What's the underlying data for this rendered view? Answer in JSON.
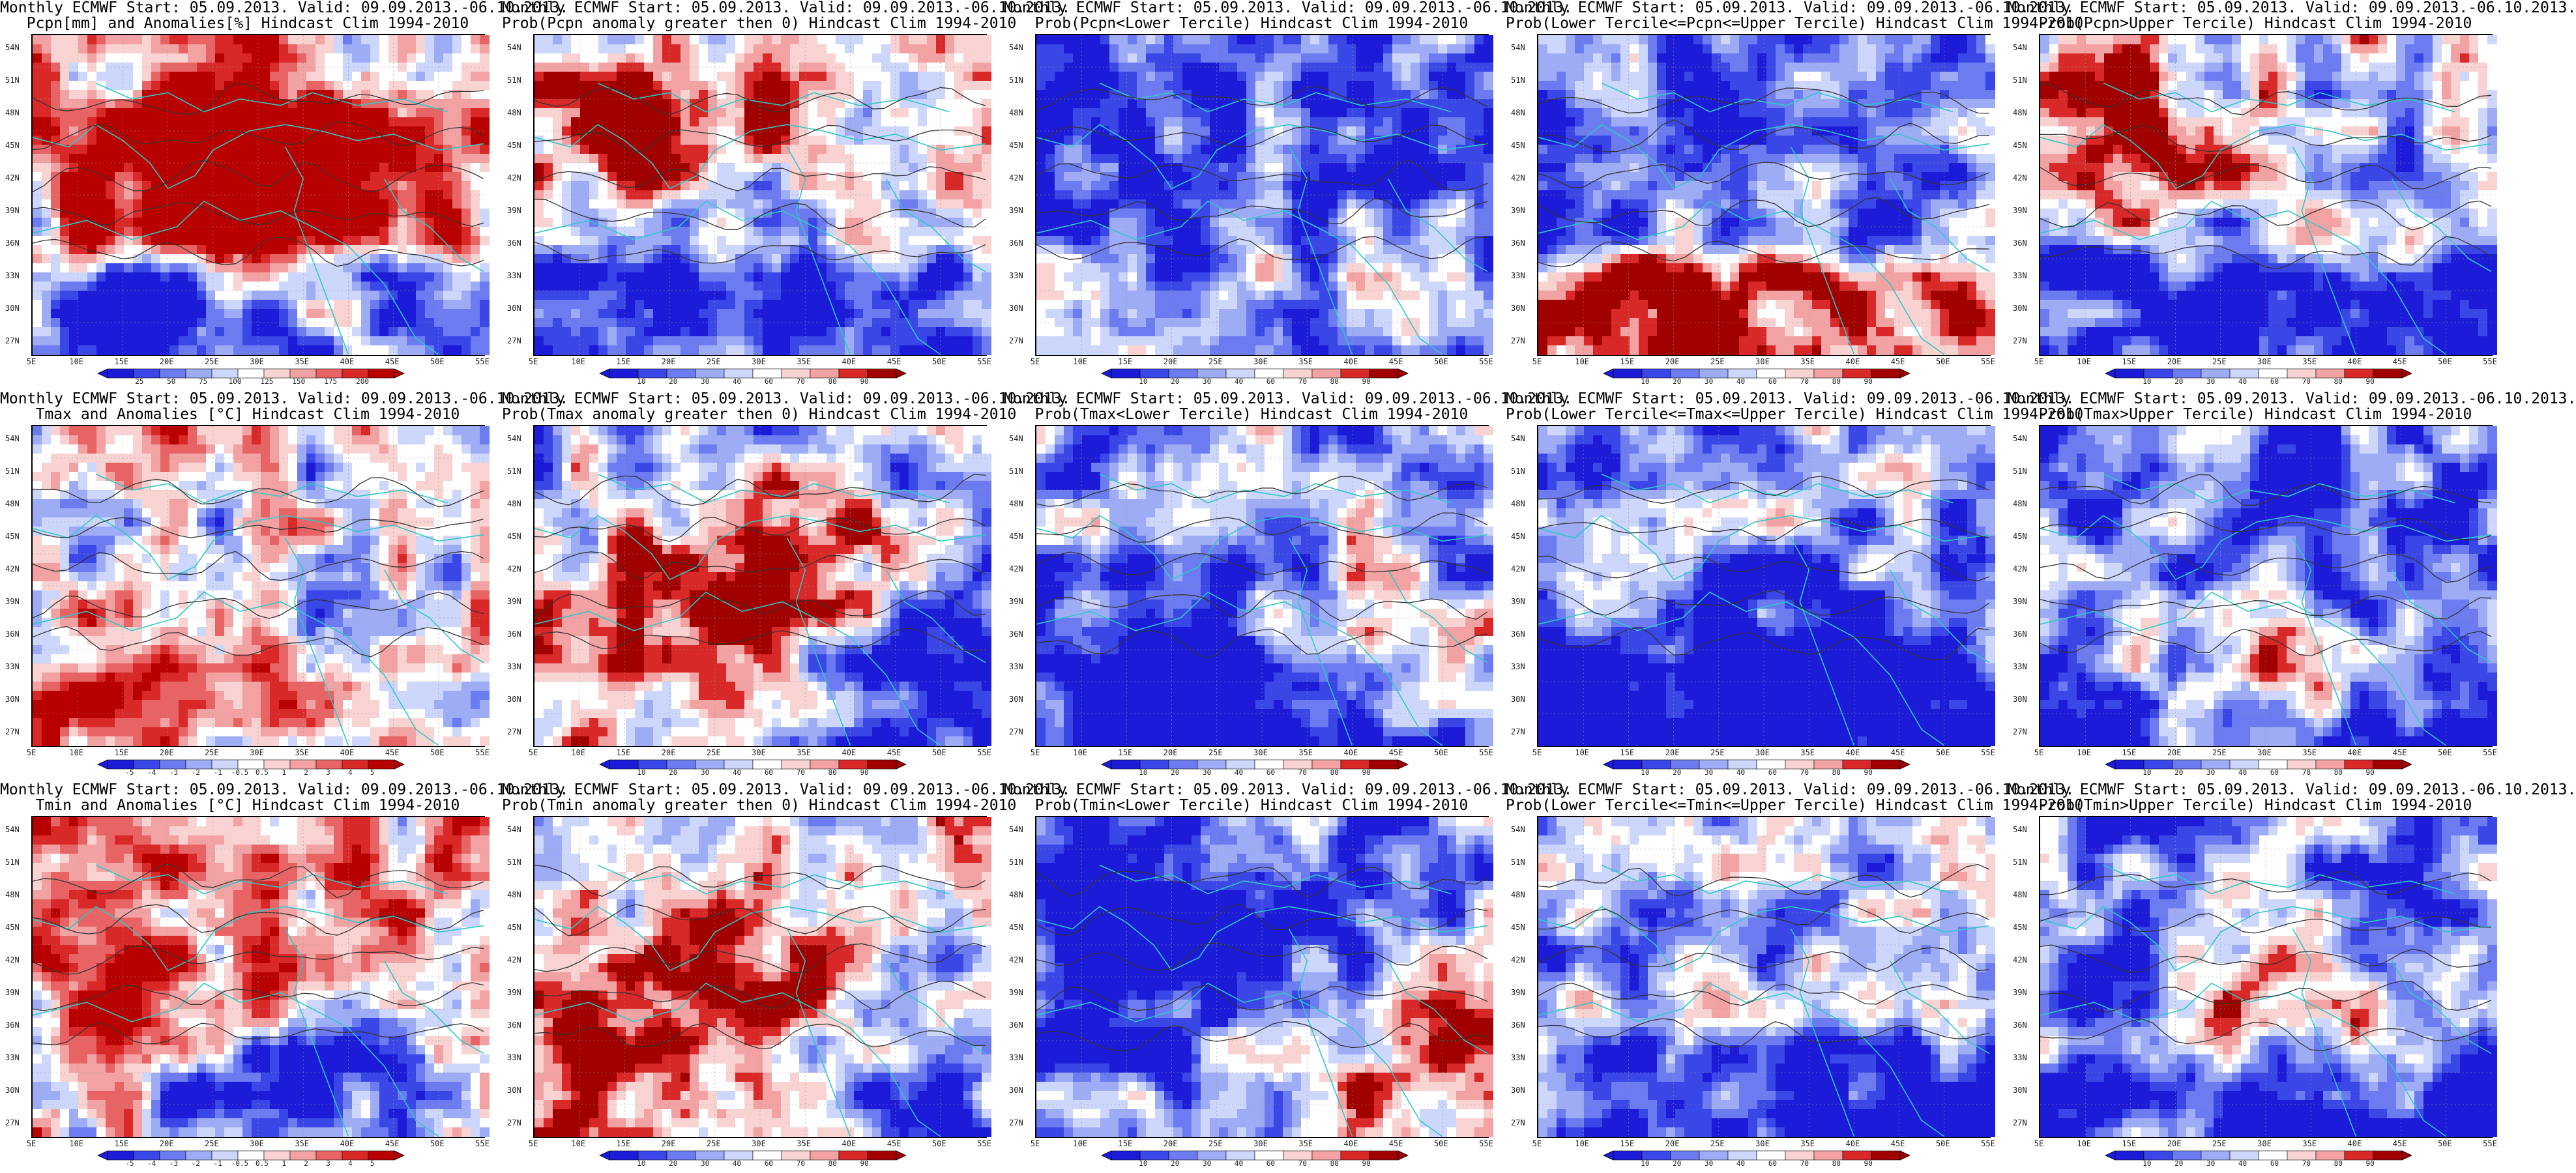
{
  "lat_labels": [
    "54N",
    "51N",
    "48N",
    "45N",
    "42N",
    "39N",
    "36N",
    "33N",
    "30N",
    "27N"
  ],
  "lon_labels": [
    "5E",
    "10E",
    "15E",
    "20E",
    "25E",
    "30E",
    "35E",
    "40E",
    "45E",
    "50E",
    "55E"
  ],
  "palettes": {
    "div": [
      "#1c1cd8",
      "#3a46e6",
      "#6c7cf0",
      "#9eacf6",
      "#cdd6fb",
      "#ffffff",
      "#f9d2d2",
      "#f2a2a2",
      "#e86464",
      "#d82828",
      "#b80000"
    ],
    "prob": [
      "#1c1cd8",
      "#3a46e6",
      "#6c7cf0",
      "#9eacf6",
      "#cdd6fb",
      "#ffffff",
      "#f9d2d2",
      "#f2a2a2",
      "#d82828",
      "#a00000"
    ],
    "contour": "#333333",
    "coast": "#2ec8c8"
  },
  "panels": [
    {
      "title1": "Monthly ECMWF Start: 05.09.2013. Valid: 09.09.2013.-06.10.2013.",
      "title2": "Pcpn[mm] and Anomalies[%] Hindcast Clim 1994-2010",
      "cbar": "div",
      "ticks": [
        "25",
        "50",
        "75",
        "100",
        "125",
        "150",
        "175",
        "200"
      ],
      "field": {
        "base": 0.3,
        "south": -1.0,
        "red": [
          [
            0.48,
            0.55,
            0.5
          ],
          [
            0.25,
            0.3,
            0.3
          ],
          [
            0.75,
            0.35,
            0.3
          ]
        ],
        "blue": [
          [
            0.2,
            0.85,
            0.2
          ]
        ]
      }
    },
    {
      "title1": "Monthly ECMWF Start: 05.09.2013. Valid: 09.09.2013.-06.10.2013.",
      "title2": "Prob(Pcpn anomaly greater then 0) Hindcast Clim 1994-2010",
      "cbar": "prob",
      "ticks": [
        "10",
        "20",
        "30",
        "40",
        "60",
        "70",
        "80",
        "90"
      ],
      "field": {
        "base": 0.2,
        "south": -1.0,
        "red": [
          [
            0.25,
            0.25,
            0.35
          ]
        ],
        "blue": []
      }
    },
    {
      "title1": "Monthly ECMWF Start: 05.09.2013. Valid: 09.09.2013.-06.10.2013.",
      "title2": "Prob(Pcpn<Lower Tercile) Hindcast Clim 1994-2010",
      "cbar": "prob",
      "ticks": [
        "10",
        "20",
        "30",
        "40",
        "60",
        "70",
        "80",
        "90"
      ],
      "field": {
        "base": -0.7,
        "south": 0.4,
        "red": [],
        "blue": []
      }
    },
    {
      "title1": "Monthly ECMWF Start: 05.09.2013. Valid: 09.09.2013.-06.10.2013.",
      "title2": "Prob(Lower Tercile<=Pcpn<=Upper Tercile) Hindcast Clim 1994-2010",
      "cbar": "prob",
      "ticks": [
        "10",
        "20",
        "30",
        "40",
        "60",
        "70",
        "80",
        "90"
      ],
      "field": {
        "base": -0.45,
        "south": 1.2,
        "red": [],
        "blue": []
      }
    },
    {
      "title1": "Monthly ECMWF Start: 05.09.2013. Valid: 09.09.2013.-06.10.2013.",
      "title2": "Prob(Pcpn>Upper Tercile) Hindcast Clim 1994-2010",
      "cbar": "prob",
      "ticks": [
        "10",
        "20",
        "30",
        "40",
        "60",
        "70",
        "80",
        "90"
      ],
      "field": {
        "base": -0.1,
        "south": -1.0,
        "red": [
          [
            0.2,
            0.3,
            0.4
          ]
        ],
        "blue": []
      }
    },
    {
      "title1": "Monthly ECMWF Start: 05.09.2013. Valid: 09.09.2013.-06.10.2013.",
      "title2": "Tmax and Anomalies [°C] Hindcast Clim 1994-2010",
      "cbar": "div",
      "ticks": [
        "-5",
        "-4",
        "-3",
        "-2",
        "-1",
        "-0.5",
        "0.5",
        "1",
        "2",
        "3",
        "4",
        "5"
      ],
      "field": {
        "base": 0.1,
        "south": 0.1,
        "red": [
          [
            0.2,
            0.85,
            0.25
          ]
        ],
        "blue": []
      }
    },
    {
      "title1": "Monthly ECMWF Start: 05.09.2013. Valid: 09.09.2013.-06.10.2013.",
      "title2": "Prob(Tmax anomaly greater then 0) Hindcast Clim 1994-2010",
      "cbar": "prob",
      "ticks": [
        "10",
        "20",
        "30",
        "40",
        "60",
        "70",
        "80",
        "90"
      ],
      "field": {
        "base": -0.2,
        "south": 0.0,
        "red": [
          [
            0.35,
            0.7,
            0.7
          ],
          [
            0.55,
            0.4,
            0.4
          ]
        ],
        "blue": [
          [
            0.75,
            0.8,
            0.6
          ]
        ]
      }
    },
    {
      "title1": "Monthly ECMWF Start: 05.09.2013. Valid: 09.09.2013.-06.10.2013.",
      "title2": "Prob(Tmax<Lower Tercile) Hindcast Clim 1994-2010",
      "cbar": "prob",
      "ticks": [
        "10",
        "20",
        "30",
        "40",
        "60",
        "70",
        "80",
        "90"
      ],
      "field": {
        "base": -0.35,
        "south": -0.3,
        "red": [
          [
            0.72,
            0.65,
            0.4
          ]
        ],
        "blue": [
          [
            0.4,
            0.75,
            0.6
          ]
        ]
      }
    },
    {
      "title1": "Monthly ECMWF Start: 05.09.2013. Valid: 09.09.2013.-06.10.2013.",
      "title2": "Prob(Lower Tercile<=Tmax<=Upper Tercile) Hindcast Clim 1994-2010",
      "cbar": "prob",
      "ticks": [
        "10",
        "20",
        "30",
        "40",
        "60",
        "70",
        "80",
        "90"
      ],
      "field": {
        "base": -0.35,
        "south": -0.2,
        "red": [],
        "blue": [
          [
            0.5,
            0.8,
            0.6
          ]
        ]
      }
    },
    {
      "title1": "Monthly ECMWF Start: 05.09.2013. Valid: 09.09.2013.-06.10.2013.",
      "title2": "Prob(Tmax>Upper Tercile) Hindcast Clim 1994-2010",
      "cbar": "prob",
      "ticks": [
        "10",
        "20",
        "30",
        "40",
        "60",
        "70",
        "80",
        "90"
      ],
      "field": {
        "base": -0.6,
        "south": -0.2,
        "red": [
          [
            0.45,
            0.75,
            0.35
          ]
        ],
        "blue": []
      }
    },
    {
      "title1": "Monthly ECMWF Start: 05.09.2013. Valid: 09.09.2013.-06.10.2013.",
      "title2": "Tmin and Anomalies [°C] Hindcast Clim 1994-2010",
      "cbar": "div",
      "ticks": [
        "-5",
        "-4",
        "-3",
        "-2",
        "-1",
        "-0.5",
        "0.5",
        "1",
        "2",
        "3",
        "4",
        "5"
      ],
      "field": {
        "base": 0.5,
        "south": -0.3,
        "red": [],
        "blue": [
          [
            0.6,
            0.9,
            0.5
          ]
        ]
      }
    },
    {
      "title1": "Monthly ECMWF Start: 05.09.2013. Valid: 09.09.2013.-06.10.2013.",
      "title2": "Prob(Tmin anomaly greater then 0) Hindcast Clim 1994-2010",
      "cbar": "prob",
      "ticks": [
        "10",
        "20",
        "30",
        "40",
        "60",
        "70",
        "80",
        "90"
      ],
      "field": {
        "base": 0.1,
        "south": 0.3,
        "red": [
          [
            0.4,
            0.55,
            0.5
          ]
        ],
        "blue": [
          [
            0.82,
            0.85,
            0.6
          ]
        ]
      }
    },
    {
      "title1": "Monthly ECMWF Start: 05.09.2013. Valid: 09.09.2013.-06.10.2013.",
      "title2": "Prob(Tmin<Lower Tercile) Hindcast Clim 1994-2010",
      "cbar": "prob",
      "ticks": [
        "10",
        "20",
        "30",
        "40",
        "60",
        "70",
        "80",
        "90"
      ],
      "field": {
        "base": -0.3,
        "south": -0.4,
        "red": [
          [
            0.78,
            0.82,
            0.7
          ]
        ],
        "blue": [
          [
            0.4,
            0.4,
            0.6
          ]
        ]
      }
    },
    {
      "title1": "Monthly ECMWF Start: 05.09.2013. Valid: 09.09.2013.-06.10.2013.",
      "title2": "Prob(Lower Tercile<=Tmin<=Upper Tercile) Hindcast Clim 1994-2010",
      "cbar": "prob",
      "ticks": [
        "10",
        "20",
        "30",
        "40",
        "60",
        "70",
        "80",
        "90"
      ],
      "field": {
        "base": -0.3,
        "south": -0.6,
        "red": [],
        "blue": []
      }
    },
    {
      "title1": "Monthly ECMWF Start: 05.09.2013. Valid: 09.09.2013.-06.10.2013.",
      "title2": "Prob(Tmin>Upper Tercile) Hindcast Clim 1994-2010",
      "cbar": "prob",
      "ticks": [
        "10",
        "20",
        "30",
        "40",
        "60",
        "70",
        "80",
        "90"
      ],
      "field": {
        "base": -0.45,
        "south": -0.4,
        "red": [
          [
            0.5,
            0.6,
            0.3
          ]
        ],
        "blue": []
      }
    }
  ]
}
